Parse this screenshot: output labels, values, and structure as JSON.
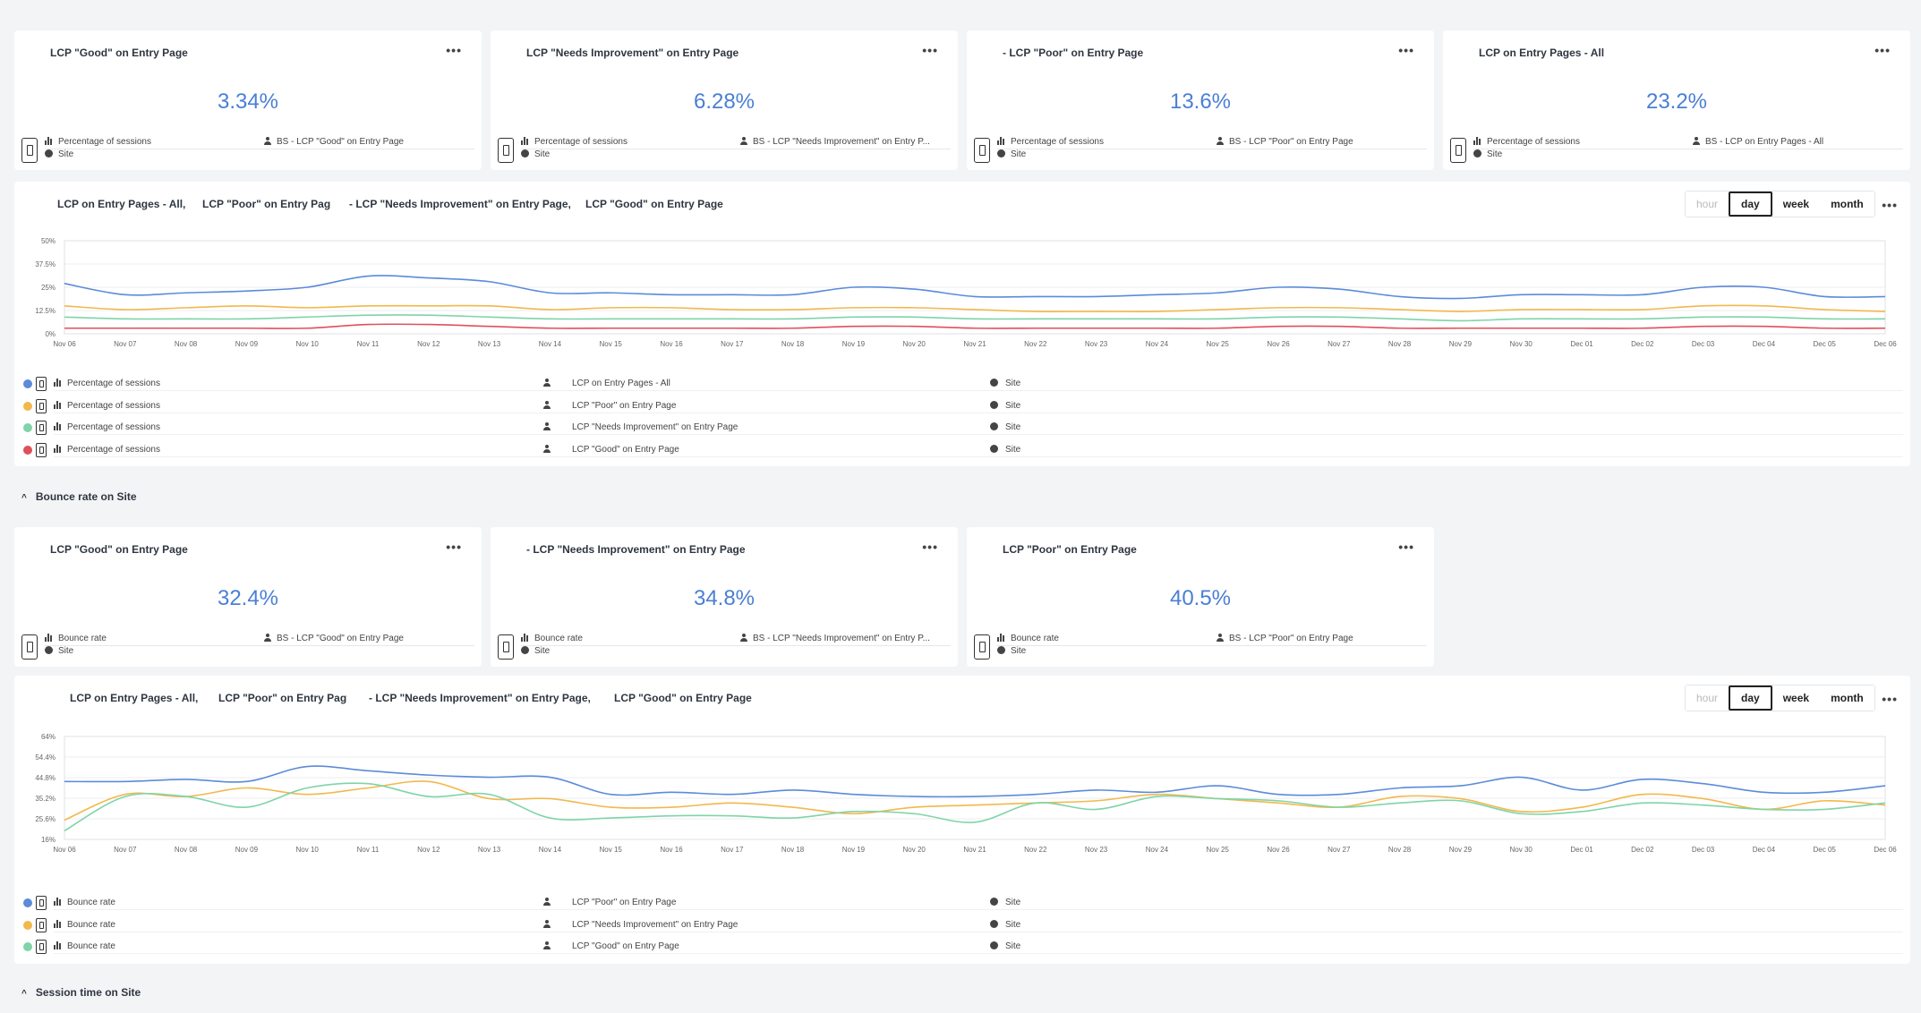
{
  "sections": {
    "bounce": {
      "title": "Bounce rate on Site",
      "chevron": "^"
    },
    "session": {
      "title": "Session time on Site",
      "chevron": "^"
    }
  },
  "kpis_lcp": [
    {
      "title": "LCP \"Good\" on Entry Page",
      "value": "3.34%",
      "metric": "Percentage of sessions",
      "segment": "BS - LCP \"Good\" on Entry Page",
      "scope": "Site"
    },
    {
      "title": "LCP \"Needs Improvement\" on Entry Page",
      "value": "6.28%",
      "metric": "Percentage of sessions",
      "segment": "BS - LCP \"Needs Improvement\" on Entry P...",
      "scope": "Site"
    },
    {
      "title": "- LCP \"Poor\" on Entry Page",
      "value": "13.6%",
      "metric": "Percentage of sessions",
      "segment": "BS - LCP \"Poor\" on Entry Page",
      "scope": "Site"
    },
    {
      "title": "LCP on Entry Pages - All",
      "value": "23.2%",
      "metric": "Percentage of sessions",
      "segment": "BS - LCP on Entry Pages - All",
      "scope": "Site"
    }
  ],
  "kpis_bounce": [
    {
      "title": "LCP \"Good\" on Entry Page",
      "value": "32.4%",
      "metric": "Bounce rate",
      "segment": "BS - LCP \"Good\" on Entry Page",
      "scope": "Site"
    },
    {
      "title": "- LCP \"Needs Improvement\" on Entry Page",
      "value": "34.8%",
      "metric": "Bounce rate",
      "segment": "BS - LCP \"Needs Improvement\" on Entry P...",
      "scope": "Site"
    },
    {
      "title": "LCP \"Poor\" on Entry Page",
      "value": "40.5%",
      "metric": "Bounce rate",
      "segment": "BS - LCP \"Poor\" on Entry Page",
      "scope": "Site"
    }
  ],
  "dots_label": "•••",
  "granularity": {
    "hour": "hour",
    "day": "day",
    "week": "week",
    "month": "month",
    "active": "day"
  },
  "chart1_titles": [
    "LCP on Entry Pages - All,",
    "LCP \"Poor\" on Entry Pag",
    "- LCP \"Needs Improvement\" on Entry Page,",
    "LCP \"Good\" on Entry Page"
  ],
  "chart2_titles": [
    "LCP on Entry Pages - All,",
    "LCP \"Poor\" on Entry Pag",
    "- LCP \"Needs Improvement\" on Entry Page,",
    "LCP \"Good\" on Entry Page"
  ],
  "legend1": [
    {
      "color": "#5b8bd9",
      "metric": "Percentage of sessions",
      "segment": "LCP on Entry Pages - All",
      "scope": "Site"
    },
    {
      "color": "#f2b84b",
      "metric": "Percentage of sessions",
      "segment": "LCP \"Poor\" on Entry Page",
      "scope": "Site"
    },
    {
      "color": "#7fd4a8",
      "metric": "Percentage of sessions",
      "segment": "LCP \"Needs Improvement\" on Entry Page",
      "scope": "Site"
    },
    {
      "color": "#e0505a",
      "metric": "Percentage of sessions",
      "segment": "LCP \"Good\" on Entry Page",
      "scope": "Site"
    }
  ],
  "legend2": [
    {
      "color": "#5b8bd9",
      "metric": "Bounce rate",
      "segment": "LCP \"Poor\" on Entry Page",
      "scope": "Site"
    },
    {
      "color": "#f2b84b",
      "metric": "Bounce rate",
      "segment": "LCP \"Needs Improvement\" on Entry Page",
      "scope": "Site"
    },
    {
      "color": "#7fd4a8",
      "metric": "Bounce rate",
      "segment": "LCP \"Good\" on Entry Page",
      "scope": "Site"
    }
  ],
  "chart_data": [
    {
      "type": "line",
      "x": [
        "Nov 06",
        "Nov 07",
        "Nov 08",
        "Nov 09",
        "Nov 10",
        "Nov 11",
        "Nov 12",
        "Nov 13",
        "Nov 14",
        "Nov 15",
        "Nov 16",
        "Nov 17",
        "Nov 18",
        "Nov 19",
        "Nov 20",
        "Nov 21",
        "Nov 22",
        "Nov 23",
        "Nov 24",
        "Nov 25",
        "Nov 26",
        "Nov 27",
        "Nov 28",
        "Nov 29",
        "Nov 30",
        "Dec 01",
        "Dec 02",
        "Dec 03",
        "Dec 04",
        "Dec 05",
        "Dec 06"
      ],
      "yticks": [
        "0%",
        "12.5%",
        "25%",
        "37.5%",
        "50%"
      ],
      "ylim": [
        0,
        50
      ],
      "grid": true,
      "series": [
        {
          "color": "#5b8bd9",
          "values": [
            27,
            21,
            22,
            23,
            25,
            31,
            30,
            28,
            22,
            22,
            21,
            21,
            21,
            25,
            24,
            20,
            20,
            20,
            21,
            22,
            25,
            24,
            20,
            19,
            21,
            21,
            21,
            25,
            25,
            20,
            20
          ]
        },
        {
          "color": "#f2b84b",
          "values": [
            15,
            13,
            14,
            15,
            14,
            15,
            15,
            15,
            13,
            14,
            14,
            13,
            13,
            14,
            14,
            13,
            12,
            12,
            12,
            13,
            14,
            14,
            13,
            12,
            13,
            13,
            13,
            15,
            15,
            13,
            12
          ]
        },
        {
          "color": "#7fd4a8",
          "values": [
            9,
            8,
            8,
            8,
            9,
            10,
            10,
            9,
            8,
            8,
            8,
            8,
            8,
            9,
            9,
            8,
            8,
            8,
            8,
            8,
            9,
            9,
            8,
            7,
            8,
            8,
            8,
            9,
            9,
            8,
            8
          ]
        },
        {
          "color": "#e0505a",
          "values": [
            3,
            3,
            3,
            3,
            3,
            5,
            5,
            4,
            3,
            3,
            3,
            3,
            3,
            4,
            4,
            3,
            3,
            3,
            3,
            3,
            4,
            4,
            3,
            3,
            3,
            3,
            3,
            4,
            4,
            3,
            3
          ]
        }
      ]
    },
    {
      "type": "line",
      "x": [
        "Nov 06",
        "Nov 07",
        "Nov 08",
        "Nov 09",
        "Nov 10",
        "Nov 11",
        "Nov 12",
        "Nov 13",
        "Nov 14",
        "Nov 15",
        "Nov 16",
        "Nov 17",
        "Nov 18",
        "Nov 19",
        "Nov 20",
        "Nov 21",
        "Nov 22",
        "Nov 23",
        "Nov 24",
        "Nov 25",
        "Nov 26",
        "Nov 27",
        "Nov 28",
        "Nov 29",
        "Nov 30",
        "Dec 01",
        "Dec 02",
        "Dec 03",
        "Dec 04",
        "Dec 05",
        "Dec 06"
      ],
      "yticks": [
        "16%",
        "25.6%",
        "35.2%",
        "44.8%",
        "54.4%",
        "64%"
      ],
      "ylim": [
        16,
        64
      ],
      "grid": true,
      "series": [
        {
          "color": "#5b8bd9",
          "values": [
            43,
            43,
            44,
            43,
            50,
            48,
            46,
            45,
            45,
            37,
            38,
            37,
            39,
            37,
            36,
            36,
            37,
            39,
            38,
            41,
            37,
            37,
            40,
            41,
            45,
            39,
            44,
            42,
            38,
            38,
            41
          ]
        },
        {
          "color": "#f2b84b",
          "values": [
            25,
            37,
            36,
            40,
            37,
            40,
            43,
            35,
            35,
            31,
            31,
            33,
            31,
            28,
            31,
            32,
            33,
            34,
            37,
            35,
            33,
            31,
            36,
            35,
            29,
            31,
            37,
            35,
            30,
            34,
            32
          ]
        },
        {
          "color": "#7fd4a8",
          "values": [
            20,
            36,
            36,
            31,
            40,
            42,
            36,
            37,
            26,
            26,
            27,
            27,
            26,
            29,
            28,
            24,
            33,
            30,
            36,
            35,
            34,
            31,
            33,
            34,
            28,
            29,
            33,
            32,
            30,
            30,
            33
          ]
        }
      ]
    }
  ]
}
